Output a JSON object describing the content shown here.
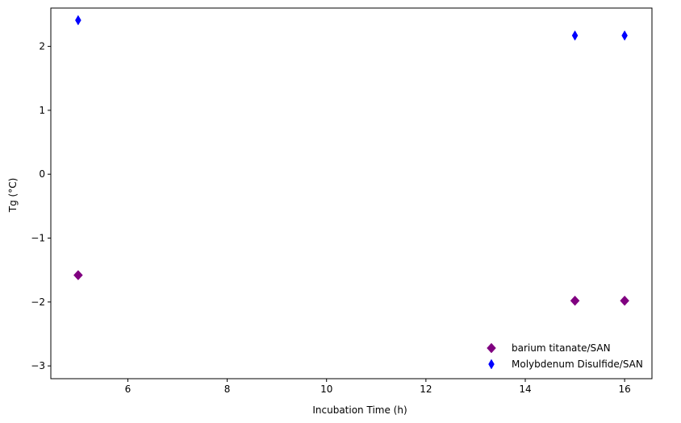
{
  "chart_data": {
    "type": "scatter",
    "title": "",
    "xlabel": "Incubation Time (h)",
    "ylabel": "Tg (°C)",
    "xlim": [
      4.45,
      16.55
    ],
    "ylim": [
      -3.2,
      2.6
    ],
    "xticks": [
      6,
      8,
      10,
      12,
      14,
      16
    ],
    "yticks": [
      -3,
      -2,
      -1,
      0,
      1,
      2
    ],
    "grid": false,
    "legend_position": "lower right",
    "series": [
      {
        "name": "barium titanate/SAN",
        "color": "#800080",
        "marker": "diamond",
        "points": [
          {
            "x": 5,
            "y": -1.58
          },
          {
            "x": 15,
            "y": -1.98
          },
          {
            "x": 16,
            "y": -1.98
          }
        ]
      },
      {
        "name": "Molybdenum Disulfide/SAN",
        "color": "#0000ff",
        "marker": "thin-diamond",
        "points": [
          {
            "x": 5,
            "y": 2.41
          },
          {
            "x": 15,
            "y": 2.17
          },
          {
            "x": 16,
            "y": 2.17
          }
        ]
      }
    ]
  }
}
